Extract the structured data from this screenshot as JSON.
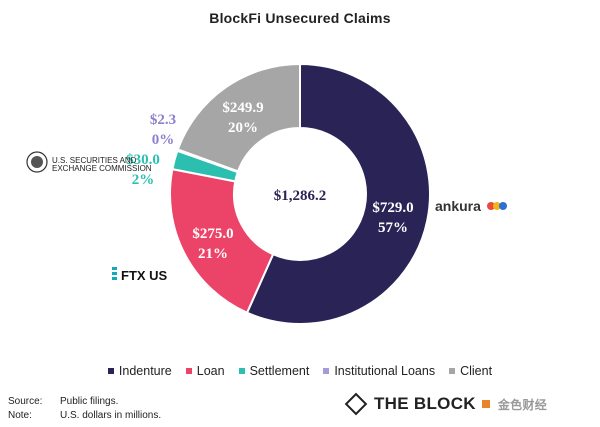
{
  "title": "BlockFi Unsecured Claims",
  "chart_data": {
    "type": "donut",
    "title": "BlockFi Unsecured Claims",
    "center_label": "$1,286.2",
    "total": 1286.2,
    "legend_position": "bottom",
    "series": [
      {
        "name": "Indenture",
        "value": 729.0,
        "value_label": "$729.0",
        "percent_label": "57%",
        "color": "#2a2456"
      },
      {
        "name": "Loan",
        "value": 275.0,
        "value_label": "$275.0",
        "percent_label": "21%",
        "color": "#ec4468"
      },
      {
        "name": "Settlement",
        "value": 30.0,
        "value_label": "$30.0",
        "percent_label": "2%",
        "color": "#2cbfb0"
      },
      {
        "name": "Institutional Loans",
        "value": 2.3,
        "value_label": "$2.3",
        "percent_label": "0%",
        "color": "#a79ad6"
      },
      {
        "name": "Client",
        "value": 249.9,
        "value_label": "$249.9",
        "percent_label": "20%",
        "color": "#a6a6a6"
      }
    ]
  },
  "logos": {
    "ankura": "ankura",
    "ftx": "FTX US",
    "sec_line1": "U.S. SECURITIES AND",
    "sec_line2": "EXCHANGE COMMISSION"
  },
  "footer": {
    "source_key": "Source:",
    "source_value": "Public filings.",
    "note_key": "Note:",
    "note_value": "U.S. dollars in millions."
  },
  "brand": {
    "name": "THE BLOCK",
    "cn": "金色财经"
  }
}
